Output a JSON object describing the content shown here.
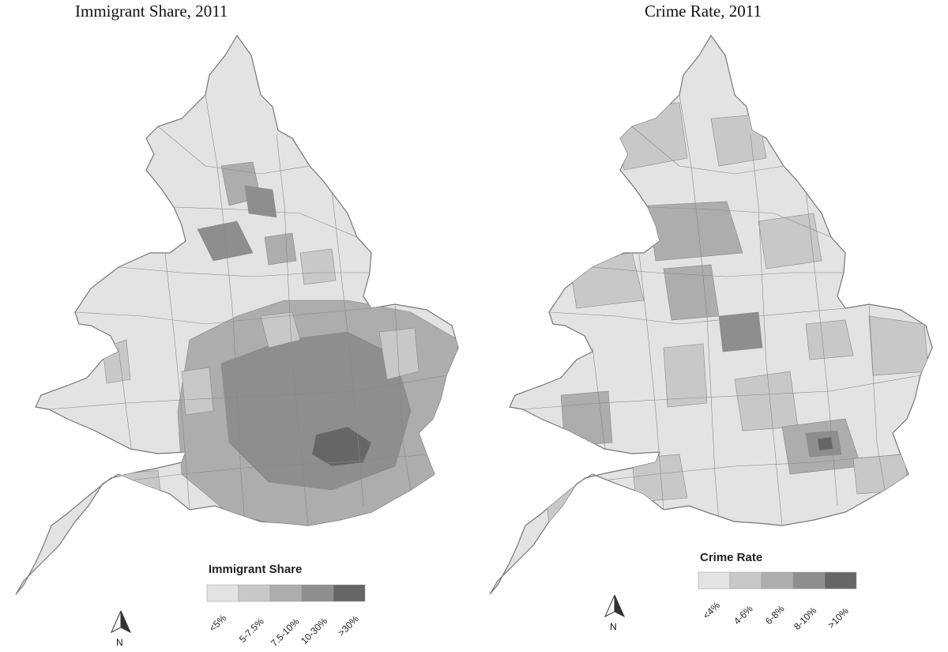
{
  "maps": [
    {
      "title": "Immigrant Share, 2011",
      "legend": {
        "title": "Immigrant Share",
        "classes": [
          {
            "label": "<5%",
            "color": "#e3e3e3"
          },
          {
            "label": "5-7.5%",
            "color": "#c8c8c8"
          },
          {
            "label": "7.5-10%",
            "color": "#adadad"
          },
          {
            "label": "10-30%",
            "color": "#8e8e8e"
          },
          {
            "label": ">30%",
            "color": "#666666"
          }
        ]
      },
      "north_label": "N"
    },
    {
      "title": "Crime Rate, 2011",
      "legend": {
        "title": "Crime Rate",
        "classes": [
          {
            "label": "<4%",
            "color": "#e3e3e3"
          },
          {
            "label": "4-6%",
            "color": "#c8c8c8"
          },
          {
            "label": "6-8%",
            "color": "#adadad"
          },
          {
            "label": "8-10%",
            "color": "#8e8e8e"
          },
          {
            "label": ">10%",
            "color": "#666666"
          }
        ]
      },
      "north_label": "N"
    }
  ]
}
